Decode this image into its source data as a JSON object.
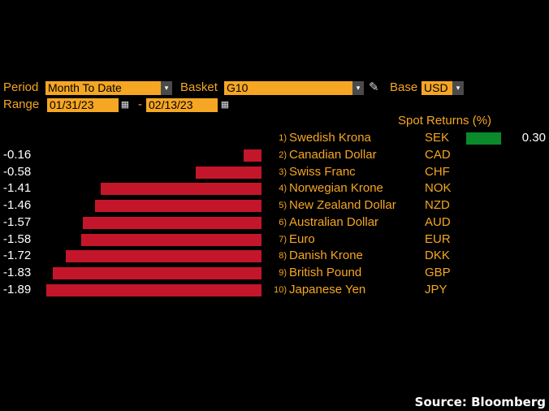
{
  "toolbar": {
    "period_label": "Period",
    "period_value": "Month To Date",
    "basket_label": "Basket",
    "basket_value": "G10",
    "base_label": "Base",
    "base_value": "USD",
    "range_label": "Range",
    "range_start": "01/31/23",
    "range_sep": "-",
    "range_end": "02/13/23",
    "dropdown_glyph": "▾",
    "calendar_glyph": "▦",
    "pencil_glyph": "✎"
  },
  "header": {
    "spot_returns_label": "Spot Returns (%)"
  },
  "colors": {
    "accent": "#f5a623",
    "negative_bar": "#c4162a",
    "positive_bar": "#0a8a2a",
    "background": "#000000"
  },
  "chart_data": {
    "type": "bar",
    "orientation": "horizontal",
    "ylabel": "Spot Returns (%)",
    "categories": [
      "Swedish Krona",
      "Canadian Dollar",
      "Swiss Franc",
      "Norwegian Krone",
      "New Zealand Dollar",
      "Australian Dollar",
      "Euro",
      "Danish Krone",
      "British Pound",
      "Japanese Yen"
    ],
    "codes": [
      "SEK",
      "CAD",
      "CHF",
      "NOK",
      "NZD",
      "AUD",
      "EUR",
      "DKK",
      "GBP",
      "JPY"
    ],
    "ranks": [
      "1)",
      "2)",
      "3)",
      "4)",
      "5)",
      "6)",
      "7)",
      "8)",
      "9)",
      "10)"
    ],
    "values": [
      0.3,
      -0.16,
      -0.58,
      -1.41,
      -1.46,
      -1.57,
      -1.58,
      -1.72,
      -1.83,
      -1.89
    ],
    "value_labels": [
      "0.30",
      "-0.16",
      "-0.58",
      "-1.41",
      "-1.46",
      "-1.57",
      "-1.58",
      "-1.72",
      "-1.83",
      "-1.89"
    ]
  },
  "footer": {
    "source": "Source: Bloomberg"
  }
}
